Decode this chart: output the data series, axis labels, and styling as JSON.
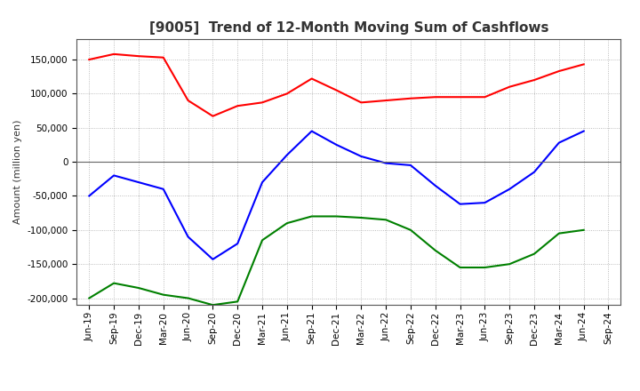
{
  "title": "[9005]  Trend of 12-Month Moving Sum of Cashflows",
  "ylabel": "Amount (million yen)",
  "ylim": [
    -210000,
    180000
  ],
  "yticks": [
    -200000,
    -150000,
    -100000,
    -50000,
    0,
    50000,
    100000,
    150000
  ],
  "x_labels": [
    "Jun-19",
    "Sep-19",
    "Dec-19",
    "Mar-20",
    "Jun-20",
    "Sep-20",
    "Dec-20",
    "Mar-21",
    "Jun-21",
    "Sep-21",
    "Dec-21",
    "Mar-22",
    "Jun-22",
    "Sep-22",
    "Dec-22",
    "Mar-23",
    "Jun-23",
    "Sep-23",
    "Dec-23",
    "Mar-24",
    "Jun-24",
    "Sep-24"
  ],
  "operating": [
    150000,
    158000,
    155000,
    153000,
    90000,
    67000,
    82000,
    87000,
    100000,
    122000,
    105000,
    87000,
    90000,
    93000,
    95000,
    95000,
    95000,
    110000,
    120000,
    133000,
    143000,
    null
  ],
  "investing": [
    -200000,
    -178000,
    -185000,
    -195000,
    -200000,
    -210000,
    -205000,
    -115000,
    -90000,
    -80000,
    -80000,
    -82000,
    -85000,
    -100000,
    -130000,
    -155000,
    -155000,
    -150000,
    -135000,
    -105000,
    -100000,
    null
  ],
  "free": [
    -50000,
    -20000,
    -30000,
    -40000,
    -110000,
    -143000,
    -120000,
    -30000,
    10000,
    45000,
    25000,
    8000,
    -2000,
    -5000,
    -35000,
    -62000,
    -60000,
    -40000,
    -15000,
    28000,
    45000,
    null
  ],
  "operating_color": "#ff0000",
  "investing_color": "#008000",
  "free_color": "#0000ff",
  "bg_color": "#ffffff",
  "plot_bg_color": "#ffffff",
  "grid_color": "#aaaaaa",
  "zero_line_color": "#666666",
  "title_color": "#333333"
}
